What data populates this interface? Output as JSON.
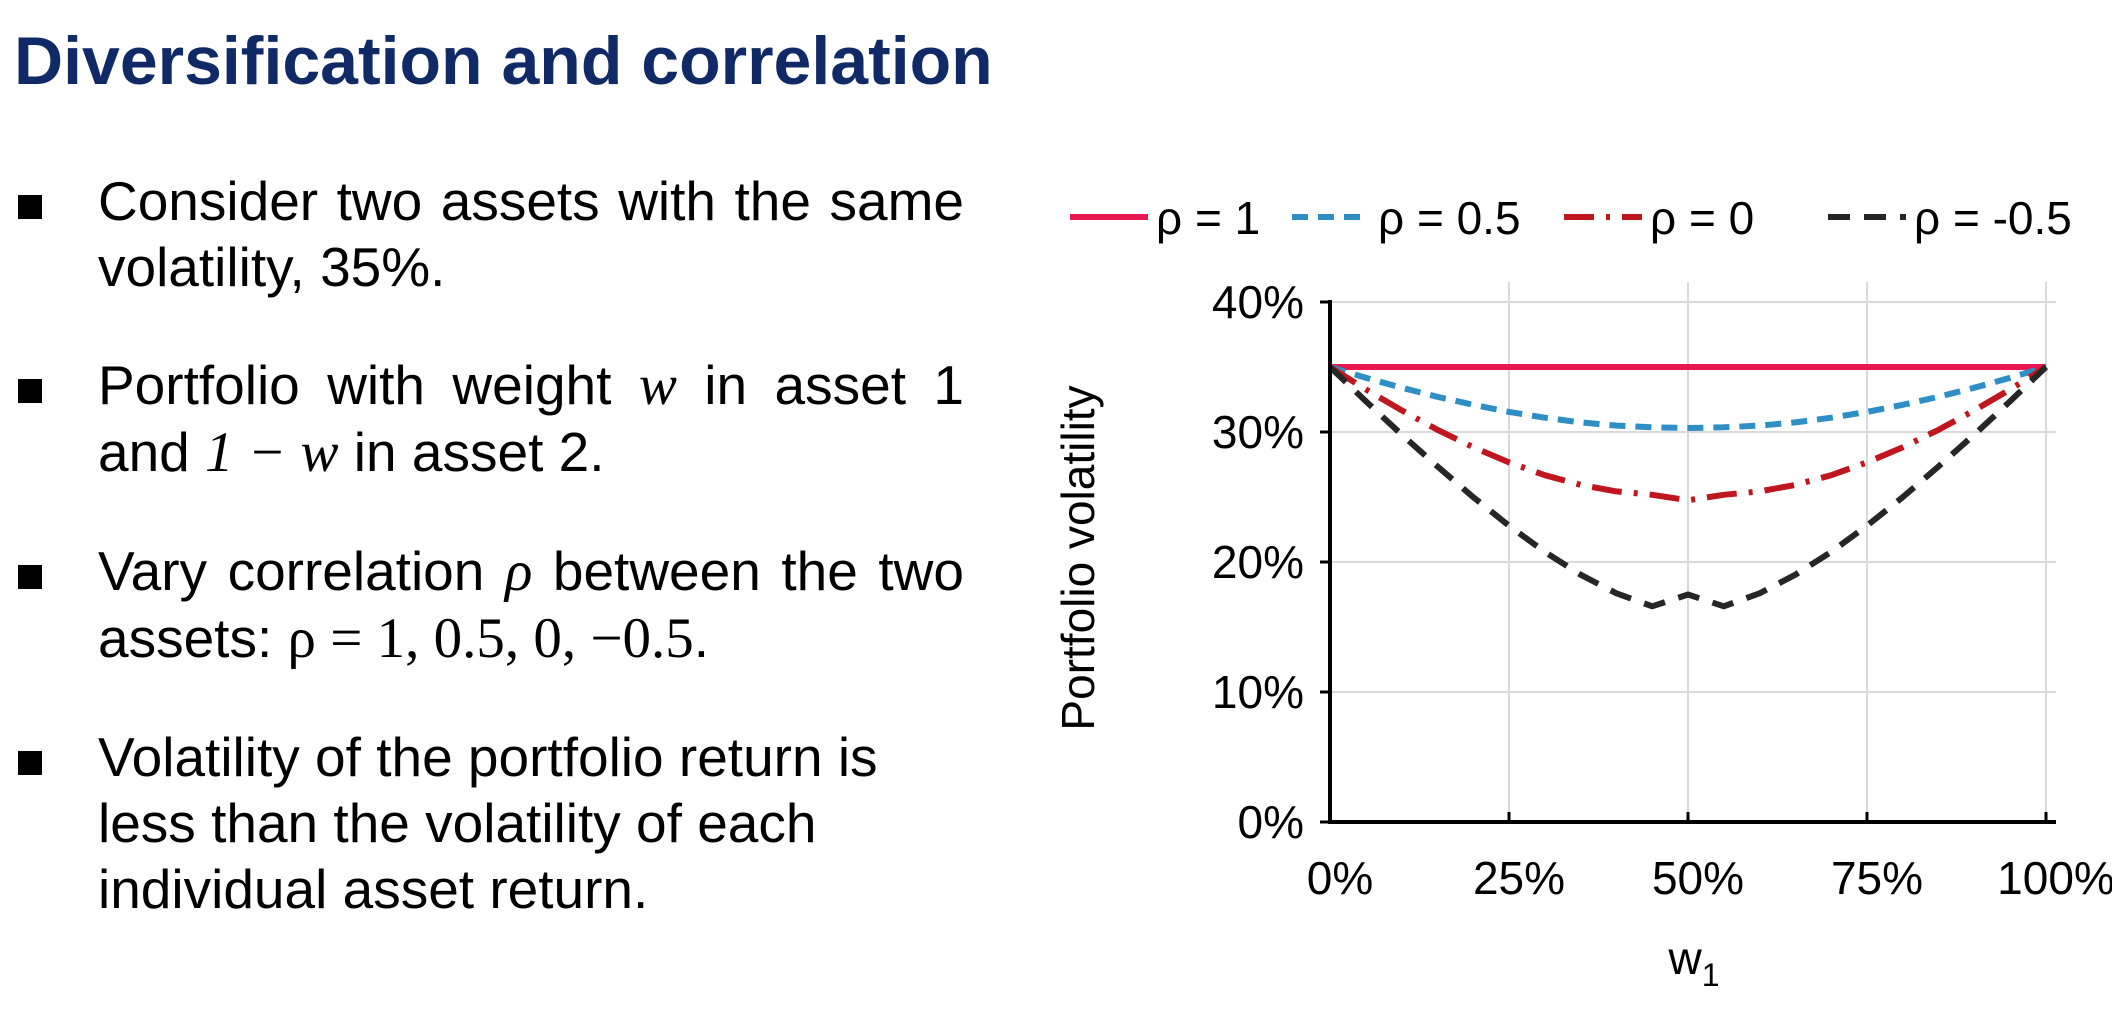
{
  "slide": {
    "title": "Diversification and correlation"
  },
  "bullets": [
    {
      "parts": [
        {
          "t": "Consider two assets with the same volatility, 35%."
        }
      ]
    },
    {
      "parts": [
        {
          "t": "Portfolio with weight "
        },
        {
          "m": "w"
        },
        {
          "t": " in asset 1 and "
        },
        {
          "m": "1 − w"
        },
        {
          "t": " in asset 2."
        }
      ]
    },
    {
      "parts": [
        {
          "t": "Vary correlation "
        },
        {
          "m": "ρ"
        },
        {
          "t": " between the two assets: "
        },
        {
          "m": "ρ = 1, 0.5, 0, −0.5"
        },
        {
          "t": "."
        }
      ]
    },
    {
      "parts": [
        {
          "t": "Volatility of the portfolio return is less than the volatility of each individual asset return."
        }
      ]
    }
  ],
  "chart_data": {
    "type": "line",
    "title": "",
    "xlabel": "w",
    "xlabel_subscript": "1",
    "ylabel": "Portfolio volatility",
    "xlim": [
      0,
      1
    ],
    "ylim": [
      0,
      0.4
    ],
    "x_ticks": [
      "0%",
      "25%",
      "50%",
      "75%",
      "100%"
    ],
    "y_ticks": [
      "0%",
      "10%",
      "20%",
      "30%",
      "40%"
    ],
    "grid": true,
    "legend_position": "top",
    "x": [
      0,
      0.05,
      0.1,
      0.15,
      0.2,
      0.25,
      0.3,
      0.35,
      0.4,
      0.45,
      0.5,
      0.55,
      0.6,
      0.65,
      0.7,
      0.75,
      0.8,
      0.85,
      0.9,
      0.95,
      1
    ],
    "series": [
      {
        "name": "ρ = 1",
        "color": "#e8174f",
        "dash": "solid",
        "values": [
          0.35,
          0.35,
          0.35,
          0.35,
          0.35,
          0.35,
          0.35,
          0.35,
          0.35,
          0.35,
          0.35,
          0.35,
          0.35,
          0.35,
          0.35,
          0.35,
          0.35,
          0.35,
          0.35,
          0.35,
          0.35
        ]
      },
      {
        "name": "ρ = 0.5",
        "color": "#2e8fc6",
        "dash": "dash",
        "values": [
          0.35,
          0.3417,
          0.3341,
          0.3271,
          0.3209,
          0.3155,
          0.311,
          0.3074,
          0.3049,
          0.3036,
          0.3031,
          0.3036,
          0.3049,
          0.3074,
          0.311,
          0.3155,
          0.3209,
          0.3271,
          0.3341,
          0.3417,
          0.35
        ]
      },
      {
        "name": "ρ = 0",
        "color": "#c0161e",
        "dash": "dashdot",
        "values": [
          0.35,
          0.3328,
          0.3167,
          0.3017,
          0.2883,
          0.2766,
          0.2668,
          0.2593,
          0.2543,
          0.2517,
          0.2475,
          0.2517,
          0.2543,
          0.2593,
          0.2668,
          0.2766,
          0.2883,
          0.3017,
          0.3167,
          0.3328,
          0.35
        ]
      },
      {
        "name": "ρ = -0.5",
        "color": "#262626",
        "dash": "longdash",
        "values": [
          0.35,
          0.3237,
          0.2981,
          0.2735,
          0.2499,
          0.2279,
          0.2078,
          0.1902,
          0.1759,
          0.1659,
          0.175,
          0.1659,
          0.1759,
          0.1902,
          0.2078,
          0.2279,
          0.2499,
          0.2735,
          0.2981,
          0.3237,
          0.35
        ]
      }
    ]
  }
}
